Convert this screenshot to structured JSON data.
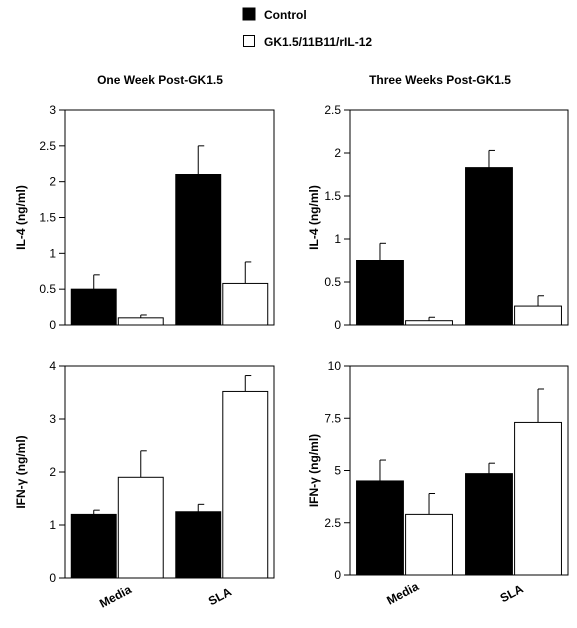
{
  "legend": {
    "control": "Control",
    "treated": "GK1.5/11B11/rIL-12"
  },
  "colors": {
    "control": "#000000",
    "treated": "#ffffff",
    "stroke": "#000000"
  },
  "chart_data": [
    {
      "type": "bar",
      "title": "One Week Post-GK1.5",
      "ylabel": "IL-4  (ng/ml)",
      "categories": [
        "Media",
        "SLA"
      ],
      "ylim": [
        0,
        3
      ],
      "yticks": [
        0,
        0.5,
        1,
        1.5,
        2,
        2.5,
        3
      ],
      "ytick_labels": [
        "0",
        "0.5",
        "1",
        "1.5",
        "2",
        "2.5",
        "3"
      ],
      "series": [
        {
          "name": "Control",
          "values": [
            0.5,
            2.1
          ],
          "errors": [
            0.2,
            0.4
          ]
        },
        {
          "name": "GK1.5/11B11/rIL-12",
          "values": [
            0.1,
            0.58
          ],
          "errors": [
            0.04,
            0.3
          ]
        }
      ]
    },
    {
      "type": "bar",
      "title": "Three Weeks Post-GK1.5",
      "ylabel": "IL-4  (ng/ml)",
      "categories": [
        "Media",
        "SLA"
      ],
      "ylim": [
        0,
        2.5
      ],
      "yticks": [
        0,
        0.5,
        1,
        1.5,
        2,
        2.5
      ],
      "ytick_labels": [
        "0",
        "0.5",
        "1",
        "1.5",
        "2",
        "2.5"
      ],
      "series": [
        {
          "name": "Control",
          "values": [
            0.75,
            1.83
          ],
          "errors": [
            0.2,
            0.2
          ]
        },
        {
          "name": "GK1.5/11B11/rIL-12",
          "values": [
            0.05,
            0.22
          ],
          "errors": [
            0.04,
            0.12
          ]
        }
      ]
    },
    {
      "type": "bar",
      "title": "",
      "ylabel": "IFN-γ  (ng/ml)",
      "categories": [
        "Media",
        "SLA"
      ],
      "ylim": [
        0,
        4
      ],
      "yticks": [
        0,
        1,
        2,
        3,
        4
      ],
      "ytick_labels": [
        "0",
        "1",
        "2",
        "3",
        "4"
      ],
      "series": [
        {
          "name": "Control",
          "values": [
            1.2,
            1.25
          ],
          "errors": [
            0.08,
            0.14
          ]
        },
        {
          "name": "GK1.5/11B11/rIL-12",
          "values": [
            1.9,
            3.52
          ],
          "errors": [
            0.5,
            0.3
          ]
        }
      ]
    },
    {
      "type": "bar",
      "title": "",
      "ylabel": "IFN-γ  (ng/ml)",
      "categories": [
        "Media",
        "SLA"
      ],
      "ylim": [
        0,
        10
      ],
      "yticks": [
        0,
        2.5,
        5,
        7.5,
        10
      ],
      "ytick_labels": [
        "0",
        "2.5",
        "5",
        "7.5",
        "10"
      ],
      "series": [
        {
          "name": "Control",
          "values": [
            4.5,
            4.85
          ],
          "errors": [
            1.0,
            0.5
          ]
        },
        {
          "name": "GK1.5/11B11/rIL-12",
          "values": [
            2.9,
            7.3
          ],
          "errors": [
            1.0,
            1.6
          ]
        }
      ]
    }
  ]
}
